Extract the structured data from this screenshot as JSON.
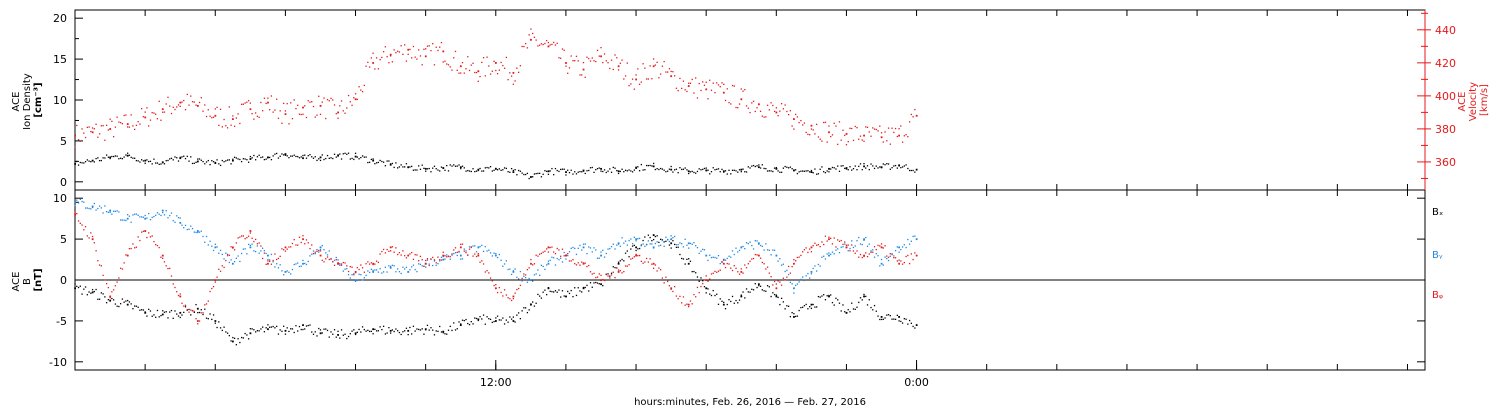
{
  "figure": {
    "xlabel": "hours:minutes, Feb. 26, 2016 — Feb. 27, 2016"
  },
  "chart_data": [
    {
      "type": "scatter",
      "panel": "top",
      "ylabel": [
        "ACE",
        "Ion Density",
        "[cm⁻³]"
      ],
      "y2label": [
        "ACE",
        "Velocity",
        "[km/s]"
      ],
      "x_unit": "hours from panel start",
      "xlim": [
        0,
        38.5
      ],
      "x_ticks_minor": [
        0,
        2,
        4,
        6,
        8,
        10,
        12,
        14,
        16,
        18,
        20,
        22,
        24,
        26,
        28,
        30,
        32,
        34,
        36,
        38
      ],
      "x_tick_labels": [
        {
          "x": 12,
          "label": "12:00"
        },
        {
          "x": 24,
          "label": "0:00"
        }
      ],
      "ylim": [
        -1,
        21
      ],
      "yticks": [
        0,
        5,
        10,
        15,
        20
      ],
      "y2lim": [
        343,
        452
      ],
      "y2ticks": [
        360,
        380,
        400,
        420,
        440
      ],
      "series": [
        {
          "color": "#000000",
          "axis": "left",
          "x": [
            0,
            0.5,
            1,
            1.5,
            2,
            2.5,
            3,
            3.5,
            4,
            4.5,
            5,
            5.5,
            6,
            6.5,
            7,
            7.5,
            8,
            8.5,
            9,
            9.5,
            10,
            10.5,
            11,
            11.5,
            12,
            12.5,
            13,
            13.5,
            14,
            14.5,
            15,
            15.5,
            16,
            16.5,
            17,
            17.5,
            18,
            18.5,
            19,
            19.5,
            20,
            20.5,
            21,
            21.5,
            22,
            22.5,
            23,
            23.5,
            24
          ],
          "values": [
            2.2,
            2.6,
            3.0,
            3.2,
            2.6,
            2.4,
            2.9,
            2.5,
            2.3,
            2.6,
            2.8,
            3.0,
            3.4,
            2.9,
            3.0,
            3.2,
            3.1,
            2.6,
            2.1,
            1.8,
            1.6,
            1.7,
            1.8,
            1.5,
            1.6,
            1.2,
            0.6,
            1.3,
            1.2,
            1.4,
            1.6,
            1.3,
            1.7,
            1.9,
            1.5,
            1.3,
            1.4,
            1.3,
            1.5,
            1.8,
            1.6,
            1.4,
            1.2,
            1.6,
            1.7,
            1.9,
            1.8,
            2.0,
            1.5
          ]
        },
        {
          "color": "#e41a1c",
          "axis": "right",
          "x": [
            0,
            0.5,
            1,
            1.5,
            2,
            2.5,
            3,
            3.5,
            4,
            4.5,
            5,
            5.5,
            6,
            6.5,
            7,
            7.5,
            8,
            8.5,
            9,
            9.5,
            10,
            10.5,
            11,
            11.5,
            12,
            12.5,
            13,
            13.5,
            14,
            14.5,
            15,
            15.5,
            16,
            16.5,
            17,
            17.5,
            18,
            18.5,
            19,
            19.5,
            20,
            20.5,
            21,
            21.5,
            22,
            22.5,
            23,
            23.5,
            24
          ],
          "values": [
            376,
            378,
            380,
            383,
            387,
            392,
            396,
            394,
            388,
            386,
            392,
            396,
            389,
            393,
            394,
            390,
            398,
            420,
            425,
            428,
            424,
            427,
            418,
            415,
            420,
            414,
            434,
            430,
            420,
            416,
            424,
            418,
            410,
            418,
            412,
            406,
            404,
            402,
            398,
            395,
            390,
            386,
            382,
            378,
            377,
            376,
            375,
            376,
            388
          ]
        }
      ]
    },
    {
      "type": "scatter",
      "panel": "bottom",
      "ylabel": [
        "ACE",
        "B",
        "[nT]"
      ],
      "x_unit": "hours from panel start",
      "xlim": [
        0,
        38.5
      ],
      "ylim": [
        -11,
        11
      ],
      "yticks": [
        -10,
        -5,
        0,
        5,
        10
      ],
      "zero_line": true,
      "series": [
        {
          "name": "Bₓ",
          "color": "#000000",
          "x": [
            0,
            0.5,
            1,
            1.5,
            2,
            2.5,
            3,
            3.5,
            4,
            4.5,
            5,
            5.5,
            6,
            6.5,
            7,
            7.5,
            8,
            8.5,
            9,
            9.5,
            10,
            10.5,
            11,
            11.5,
            12,
            12.5,
            13,
            13.5,
            14,
            14.5,
            15,
            15.5,
            16,
            16.5,
            17,
            17.5,
            18,
            18.5,
            19,
            19.5,
            20,
            20.5,
            21,
            21.5,
            22,
            22.5,
            23,
            23.5,
            24
          ],
          "values": [
            -1,
            -1.5,
            -2.5,
            -3,
            -4,
            -4.2,
            -4,
            -3.5,
            -5,
            -7.5,
            -6.5,
            -6,
            -6.2,
            -5.5,
            -6.5,
            -6.7,
            -6.5,
            -6,
            -6.2,
            -6.2,
            -6,
            -6.3,
            -5.5,
            -4.8,
            -5,
            -5,
            -3,
            -1,
            -2,
            -1,
            -0.5,
            2,
            4,
            5.5,
            4.5,
            2,
            -1,
            -3,
            -2,
            -0.5,
            -2,
            -4.5,
            -3,
            -2,
            -4,
            -2,
            -4.5,
            -4.5,
            -5.5
          ]
        },
        {
          "name": "Bᵧ",
          "color": "#1e88e5",
          "x": [
            0,
            0.5,
            1,
            1.5,
            2,
            2.5,
            3,
            3.5,
            4,
            4.5,
            5,
            5.5,
            6,
            6.5,
            7,
            7.5,
            8,
            8.5,
            9,
            9.5,
            10,
            10.5,
            11,
            11.5,
            12,
            12.5,
            13,
            13.5,
            14,
            14.5,
            15,
            15.5,
            16,
            16.5,
            17,
            17.5,
            18,
            18.5,
            19,
            19.5,
            20,
            20.5,
            21,
            21.5,
            22,
            22.5,
            23,
            23.5,
            24
          ],
          "values": [
            9.5,
            9,
            8.5,
            7.5,
            7.5,
            8.5,
            7,
            6,
            4,
            2,
            4,
            3,
            1,
            2,
            4,
            2,
            0,
            1,
            1.5,
            1,
            2,
            2.5,
            3,
            4,
            3,
            1,
            0,
            2,
            3,
            4,
            3,
            4.5,
            5,
            4,
            5,
            4.5,
            3,
            2.5,
            4,
            4.5,
            3,
            -1,
            1,
            3,
            4,
            5,
            2,
            4,
            5
          ]
        },
        {
          "name": "Bᵩ",
          "color": "#e41a1c",
          "x": [
            0,
            0.5,
            1,
            1.5,
            2,
            2.5,
            3,
            3.5,
            4,
            4.5,
            5,
            5.5,
            6,
            6.5,
            7,
            7.5,
            8,
            8.5,
            9,
            9.5,
            10,
            10.5,
            11,
            11.5,
            12,
            12.5,
            13,
            13.5,
            14,
            14.5,
            15,
            15.5,
            16,
            16.5,
            17,
            17.5,
            18,
            18.5,
            19,
            19.5,
            20,
            20.5,
            21,
            21.5,
            22,
            22.5,
            23,
            23.5,
            24
          ],
          "values": [
            8,
            5,
            -2,
            3,
            6,
            3,
            -2,
            -5,
            0,
            4,
            6,
            2,
            4,
            5,
            3,
            2,
            1,
            2,
            4,
            3,
            2,
            3,
            4,
            3,
            -1,
            -2,
            2,
            4,
            3,
            2,
            0,
            1,
            3,
            2,
            -1,
            -3,
            0,
            2,
            1,
            3,
            -1,
            2,
            4,
            5,
            4,
            3,
            4,
            2,
            3
          ]
        }
      ]
    }
  ]
}
